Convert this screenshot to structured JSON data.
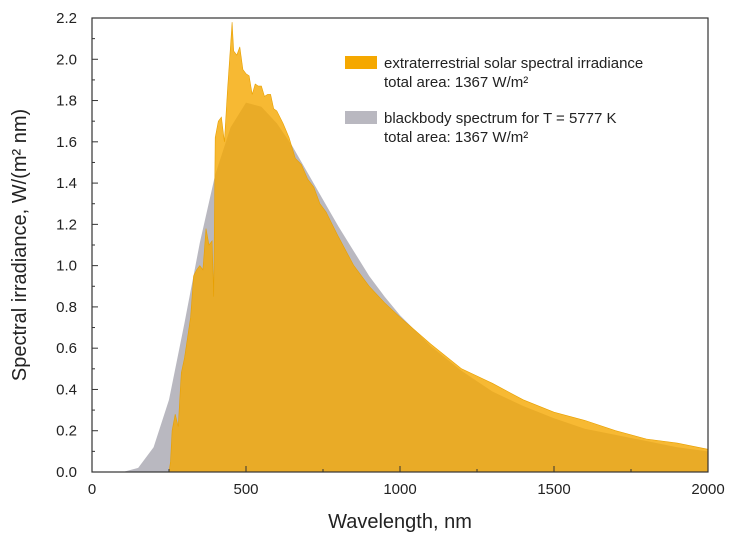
{
  "chart_data": {
    "type": "area",
    "title": "",
    "xlabel": "Wavelength, nm",
    "ylabel": "Spectral irradiance, W/(m² nm)",
    "xlim": [
      0,
      2000
    ],
    "ylim": [
      0,
      2.2
    ],
    "x_ticks": [
      0,
      500,
      1000,
      1500,
      2000
    ],
    "y_ticks": [
      0.0,
      0.2,
      0.4,
      0.6,
      0.8,
      1.0,
      1.2,
      1.4,
      1.6,
      1.8,
      2.0,
      2.2
    ],
    "x_tick_labels": [
      "0",
      "500",
      "1000",
      "1500",
      "2000"
    ],
    "y_tick_labels": [
      "0.0",
      "0.2",
      "0.4",
      "0.6",
      "0.8",
      "1.0",
      "1.2",
      "1.4",
      "1.6",
      "1.8",
      "2.0",
      "2.2"
    ],
    "grid": false,
    "legend_position": "top-right",
    "series": [
      {
        "name": "blackbody spectrum for T = 5777 K",
        "note": "total area: 1367 W/m²",
        "color": "#b9b8c0",
        "temperature_K": 5777,
        "peak_wavelength_nm": 502,
        "peak_value": 1.79,
        "points": [
          [
            100,
            0.0
          ],
          [
            150,
            0.02
          ],
          [
            200,
            0.12
          ],
          [
            250,
            0.35
          ],
          [
            300,
            0.72
          ],
          [
            350,
            1.11
          ],
          [
            400,
            1.44
          ],
          [
            450,
            1.67
          ],
          [
            500,
            1.79
          ],
          [
            550,
            1.77
          ],
          [
            600,
            1.69
          ],
          [
            650,
            1.58
          ],
          [
            700,
            1.45
          ],
          [
            750,
            1.32
          ],
          [
            800,
            1.19
          ],
          [
            850,
            1.07
          ],
          [
            900,
            0.95
          ],
          [
            950,
            0.85
          ],
          [
            1000,
            0.76
          ],
          [
            1100,
            0.61
          ],
          [
            1200,
            0.49
          ],
          [
            1300,
            0.39
          ],
          [
            1400,
            0.32
          ],
          [
            1500,
            0.26
          ],
          [
            1600,
            0.21
          ],
          [
            1700,
            0.18
          ],
          [
            1800,
            0.15
          ],
          [
            1900,
            0.12
          ],
          [
            2000,
            0.1
          ]
        ]
      },
      {
        "name": "extraterrestrial solar spectral irradiance",
        "note": "total area: 1367 W/m²",
        "color": "#f5a800",
        "fill_opacity": 0.8,
        "peak_wavelength_nm": 451,
        "peak_value": 2.18,
        "points": [
          [
            200,
            0.0
          ],
          [
            250,
            0.0
          ],
          [
            255,
            0.05
          ],
          [
            260,
            0.2
          ],
          [
            270,
            0.28
          ],
          [
            280,
            0.22
          ],
          [
            290,
            0.48
          ],
          [
            300,
            0.55
          ],
          [
            310,
            0.65
          ],
          [
            320,
            0.75
          ],
          [
            330,
            0.95
          ],
          [
            340,
            0.98
          ],
          [
            350,
            1.0
          ],
          [
            360,
            0.98
          ],
          [
            370,
            1.18
          ],
          [
            380,
            1.1
          ],
          [
            390,
            1.12
          ],
          [
            395,
            0.85
          ],
          [
            400,
            1.62
          ],
          [
            410,
            1.7
          ],
          [
            420,
            1.72
          ],
          [
            430,
            1.6
          ],
          [
            440,
            1.85
          ],
          [
            450,
            2.07
          ],
          [
            455,
            2.18
          ],
          [
            460,
            2.04
          ],
          [
            470,
            2.02
          ],
          [
            480,
            2.06
          ],
          [
            490,
            1.95
          ],
          [
            500,
            1.93
          ],
          [
            510,
            1.92
          ],
          [
            520,
            1.83
          ],
          [
            530,
            1.88
          ],
          [
            540,
            1.87
          ],
          [
            550,
            1.87
          ],
          [
            560,
            1.82
          ],
          [
            570,
            1.83
          ],
          [
            580,
            1.83
          ],
          [
            590,
            1.76
          ],
          [
            600,
            1.75
          ],
          [
            620,
            1.69
          ],
          [
            640,
            1.62
          ],
          [
            660,
            1.52
          ],
          [
            680,
            1.49
          ],
          [
            700,
            1.42
          ],
          [
            720,
            1.38
          ],
          [
            740,
            1.3
          ],
          [
            760,
            1.26
          ],
          [
            780,
            1.2
          ],
          [
            800,
            1.14
          ],
          [
            850,
            1.0
          ],
          [
            900,
            0.9
          ],
          [
            950,
            0.82
          ],
          [
            1000,
            0.75
          ],
          [
            1100,
            0.62
          ],
          [
            1200,
            0.5
          ],
          [
            1300,
            0.43
          ],
          [
            1400,
            0.35
          ],
          [
            1500,
            0.29
          ],
          [
            1600,
            0.25
          ],
          [
            1700,
            0.2
          ],
          [
            1800,
            0.16
          ],
          [
            1900,
            0.14
          ],
          [
            2000,
            0.11
          ]
        ]
      }
    ]
  },
  "legend": {
    "items": [
      {
        "label": "extraterrestrial solar spectral irradiance",
        "sublabel": "total area: 1367 W/m²",
        "color": "#f5a800"
      },
      {
        "label": "blackbody spectrum for T = 5777 K",
        "sublabel": "total area: 1367 W/m²",
        "color": "#b9b8c0"
      }
    ]
  }
}
